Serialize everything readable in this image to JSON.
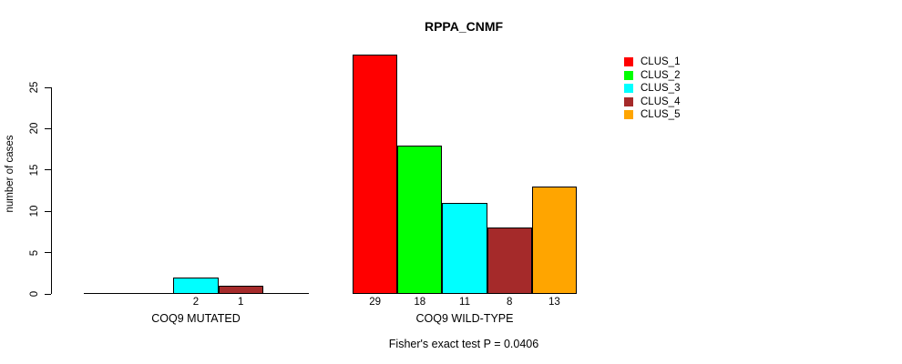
{
  "chart_data": {
    "type": "bar",
    "title": "RPPA_CNMF",
    "ylabel": "number of cases",
    "xlabel": "",
    "ylim": [
      0,
      25
    ],
    "yticks": [
      0,
      5,
      10,
      15,
      20,
      25
    ],
    "categories": [
      "COQ9 MUTATED",
      "COQ9 WILD-TYPE"
    ],
    "series": [
      {
        "name": "CLUS_1",
        "color": "#ff0000",
        "values": [
          0,
          29
        ]
      },
      {
        "name": "CLUS_2",
        "color": "#00ff00",
        "values": [
          0,
          18
        ]
      },
      {
        "name": "CLUS_3",
        "color": "#00ffff",
        "values": [
          2,
          11
        ]
      },
      {
        "name": "CLUS_4",
        "color": "#a52a2a",
        "values": [
          1,
          8
        ]
      },
      {
        "name": "CLUS_5",
        "color": "#ffa500",
        "values": [
          0,
          13
        ]
      }
    ],
    "bar_value_labels": {
      "COQ9 MUTATED": [
        "",
        "",
        "2",
        "1",
        ""
      ],
      "COQ9 WILD-TYPE": [
        "29",
        "18",
        "11",
        "8",
        "13"
      ]
    },
    "annotation": "Fisher's exact test P = 0.0406",
    "legend_position": "top-right",
    "legend_entries": [
      "CLUS_1",
      "CLUS_2",
      "CLUS_3",
      "CLUS_4",
      "CLUS_5"
    ],
    "grid": false,
    "background_color": "#ffffff",
    "axis_color": "#000000"
  }
}
